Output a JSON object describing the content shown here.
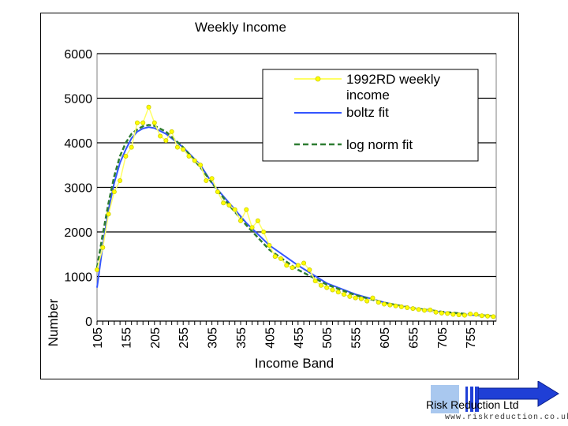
{
  "chart_data": {
    "type": "line",
    "title": "Weekly Income",
    "xlabel": "Income Band",
    "ylabel": "Number",
    "ylim": [
      0,
      6000
    ],
    "yticks": [
      0,
      1000,
      2000,
      3000,
      4000,
      5000,
      6000
    ],
    "xlim": [
      105,
      800
    ],
    "xtick_labels": [
      "105",
      "155",
      "205",
      "255",
      "305",
      "355",
      "405",
      "455",
      "505",
      "555",
      "605",
      "655",
      "705",
      "755"
    ],
    "grid": "horizontal",
    "legend_position": "top-right",
    "series": [
      {
        "name": "1992RD weekly income",
        "style": "line-with-markers",
        "color": "#ffff66",
        "x": [
          105,
          115,
          125,
          135,
          145,
          155,
          165,
          175,
          185,
          195,
          205,
          215,
          225,
          235,
          245,
          255,
          265,
          275,
          285,
          295,
          305,
          315,
          325,
          335,
          345,
          355,
          365,
          375,
          385,
          395,
          405,
          415,
          425,
          435,
          445,
          455,
          465,
          475,
          485,
          495,
          505,
          515,
          525,
          535,
          545,
          555,
          565,
          575,
          585,
          595,
          605,
          615,
          625,
          635,
          645,
          655,
          665,
          675,
          685,
          695,
          705,
          715,
          725,
          735,
          745,
          755,
          765,
          775,
          785,
          795
        ],
        "y": [
          1150,
          1650,
          2400,
          2900,
          3150,
          3700,
          3900,
          4450,
          4450,
          4800,
          4450,
          4150,
          4050,
          4250,
          3900,
          3850,
          3700,
          3600,
          3500,
          3150,
          3200,
          2900,
          2650,
          2600,
          2500,
          2250,
          2500,
          2100,
          2250,
          2000,
          1700,
          1450,
          1400,
          1250,
          1200,
          1250,
          1300,
          1150,
          900,
          800,
          750,
          700,
          650,
          600,
          550,
          520,
          500,
          450,
          520,
          420,
          380,
          360,
          340,
          320,
          300,
          280,
          260,
          240,
          250,
          200,
          180,
          170,
          150,
          140,
          130,
          160,
          150,
          120,
          110,
          100
        ]
      },
      {
        "name": "boltz fit",
        "style": "solid",
        "color": "#3355ff",
        "x": [
          105,
          115,
          125,
          135,
          145,
          155,
          165,
          175,
          185,
          195,
          205,
          225,
          255,
          285,
          305,
          335,
          365,
          405,
          455,
          505,
          555,
          605,
          655,
          705,
          755,
          795
        ],
        "y": [
          750,
          1700,
          2500,
          3100,
          3550,
          3850,
          4100,
          4250,
          4320,
          4350,
          4330,
          4200,
          3900,
          3500,
          3100,
          2650,
          2200,
          1700,
          1250,
          850,
          600,
          420,
          280,
          200,
          140,
          100
        ]
      },
      {
        "name": "log norm fit",
        "style": "dashed",
        "color": "#2e7d32",
        "x": [
          105,
          115,
          125,
          135,
          145,
          155,
          165,
          175,
          185,
          195,
          205,
          225,
          255,
          285,
          305,
          335,
          365,
          405,
          455,
          505,
          555,
          605,
          655,
          705,
          755,
          795
        ],
        "y": [
          1200,
          1950,
          2650,
          3250,
          3700,
          4000,
          4200,
          4300,
          4370,
          4400,
          4380,
          4250,
          3900,
          3450,
          3100,
          2600,
          2150,
          1600,
          1150,
          820,
          580,
          410,
          290,
          210,
          150,
          110
        ]
      }
    ],
    "legend": [
      "1992RD weekly income",
      "boltz fit",
      "log norm fit"
    ]
  },
  "branding": {
    "company": "Risk Reduction Ltd",
    "url": "www.riskreduction.co.uk",
    "accent": "#1f3fd6",
    "light_accent": "#a9c8ef"
  }
}
